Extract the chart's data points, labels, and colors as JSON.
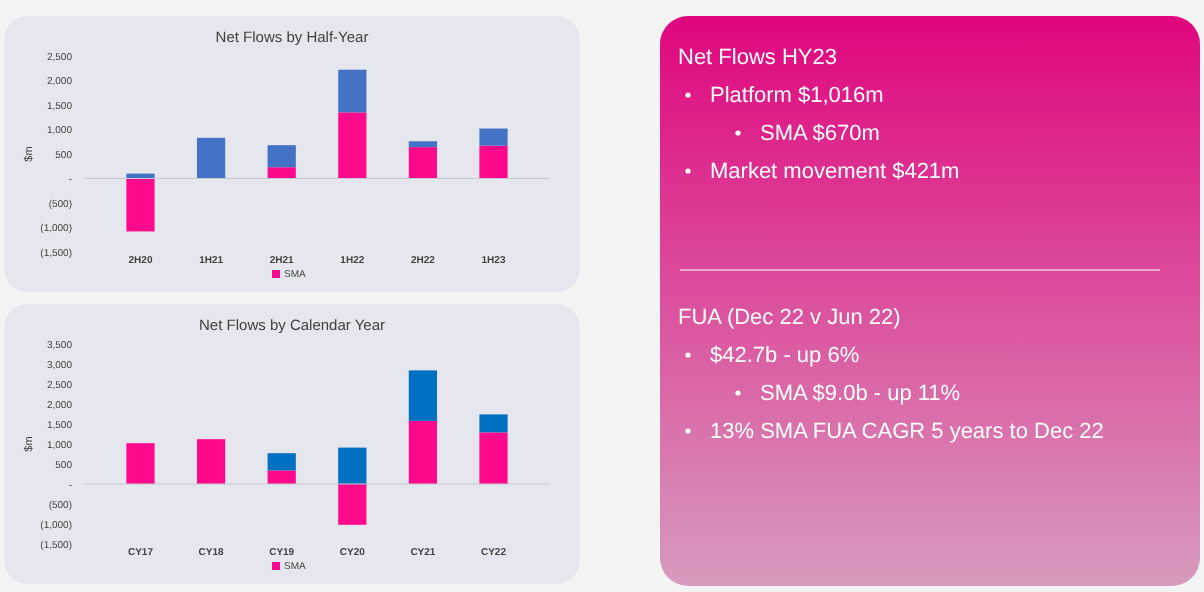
{
  "chart_data": [
    {
      "type": "bar",
      "title": "Net Flows by Half-Year",
      "ylabel": "$m",
      "categories": [
        "2H20",
        "1H21",
        "2H21",
        "1H22",
        "2H22",
        "1H23"
      ],
      "stacked": true,
      "legend": "bottom",
      "series": [
        {
          "name": "SMA",
          "color": "#ff0a8c",
          "values": [
            -1080,
            0,
            230,
            1350,
            640,
            670
          ]
        },
        {
          "color": "#4472c4",
          "values": [
            100,
            830,
            450,
            870,
            120,
            350
          ]
        }
      ],
      "ylim": [
        -1500,
        2500
      ],
      "yticks": [
        {
          "value": -1500,
          "label": "(1,500)"
        },
        {
          "value": -1000,
          "label": "(1,000)"
        },
        {
          "value": -500,
          "label": "(500)"
        },
        {
          "value": 0,
          "label": "-"
        },
        500,
        {
          "value": 1000,
          "label": "1,000"
        },
        {
          "value": 1500,
          "label": "1,500"
        },
        {
          "value": 2000,
          "label": "2,000"
        },
        {
          "value": 2500,
          "label": "2,500"
        }
      ]
    },
    {
      "type": "bar",
      "title": "Net Flows by Calendar Year",
      "ylabel": "$m",
      "categories": [
        "CY17",
        "CY18",
        "CY19",
        "CY20",
        "CY21",
        "CY22"
      ],
      "stacked": true,
      "legend": "bottom",
      "series": [
        {
          "name": "SMA",
          "color": "#ff0a8c",
          "values": [
            1020,
            1120,
            340,
            -1020,
            1580,
            1290
          ]
        },
        {
          "color": "#0070c0",
          "values": [
            0,
            0,
            430,
            910,
            1260,
            450
          ]
        }
      ],
      "ylim": [
        -1500,
        3500
      ],
      "yticks": [
        {
          "value": -1500,
          "label": "(1,500)"
        },
        {
          "value": -1000,
          "label": "(1,000)"
        },
        {
          "value": -500,
          "label": "(500)"
        },
        {
          "value": 0,
          "label": "-"
        },
        500,
        {
          "value": 1000,
          "label": "1,000"
        },
        {
          "value": 1500,
          "label": "1,500"
        },
        {
          "value": 2000,
          "label": "2,000"
        },
        {
          "value": 2500,
          "label": "2,500"
        },
        {
          "value": 3000,
          "label": "3,000"
        },
        {
          "value": 3500,
          "label": "3,500"
        }
      ]
    },
    {
      "type": "other",
      "title": "Net Flows HY23",
      "annotations": [
        "Platform $1,016m",
        "SMA $670m",
        "Market movement $421m"
      ]
    },
    {
      "type": "other",
      "title": "FUA (Dec 22 v Jun 22)",
      "annotations": [
        "$42.7b - up 6%",
        "SMA $9.0b - up 11%",
        "13% SMA FUA CAGR 5 years to Dec 22"
      ]
    }
  ]
}
